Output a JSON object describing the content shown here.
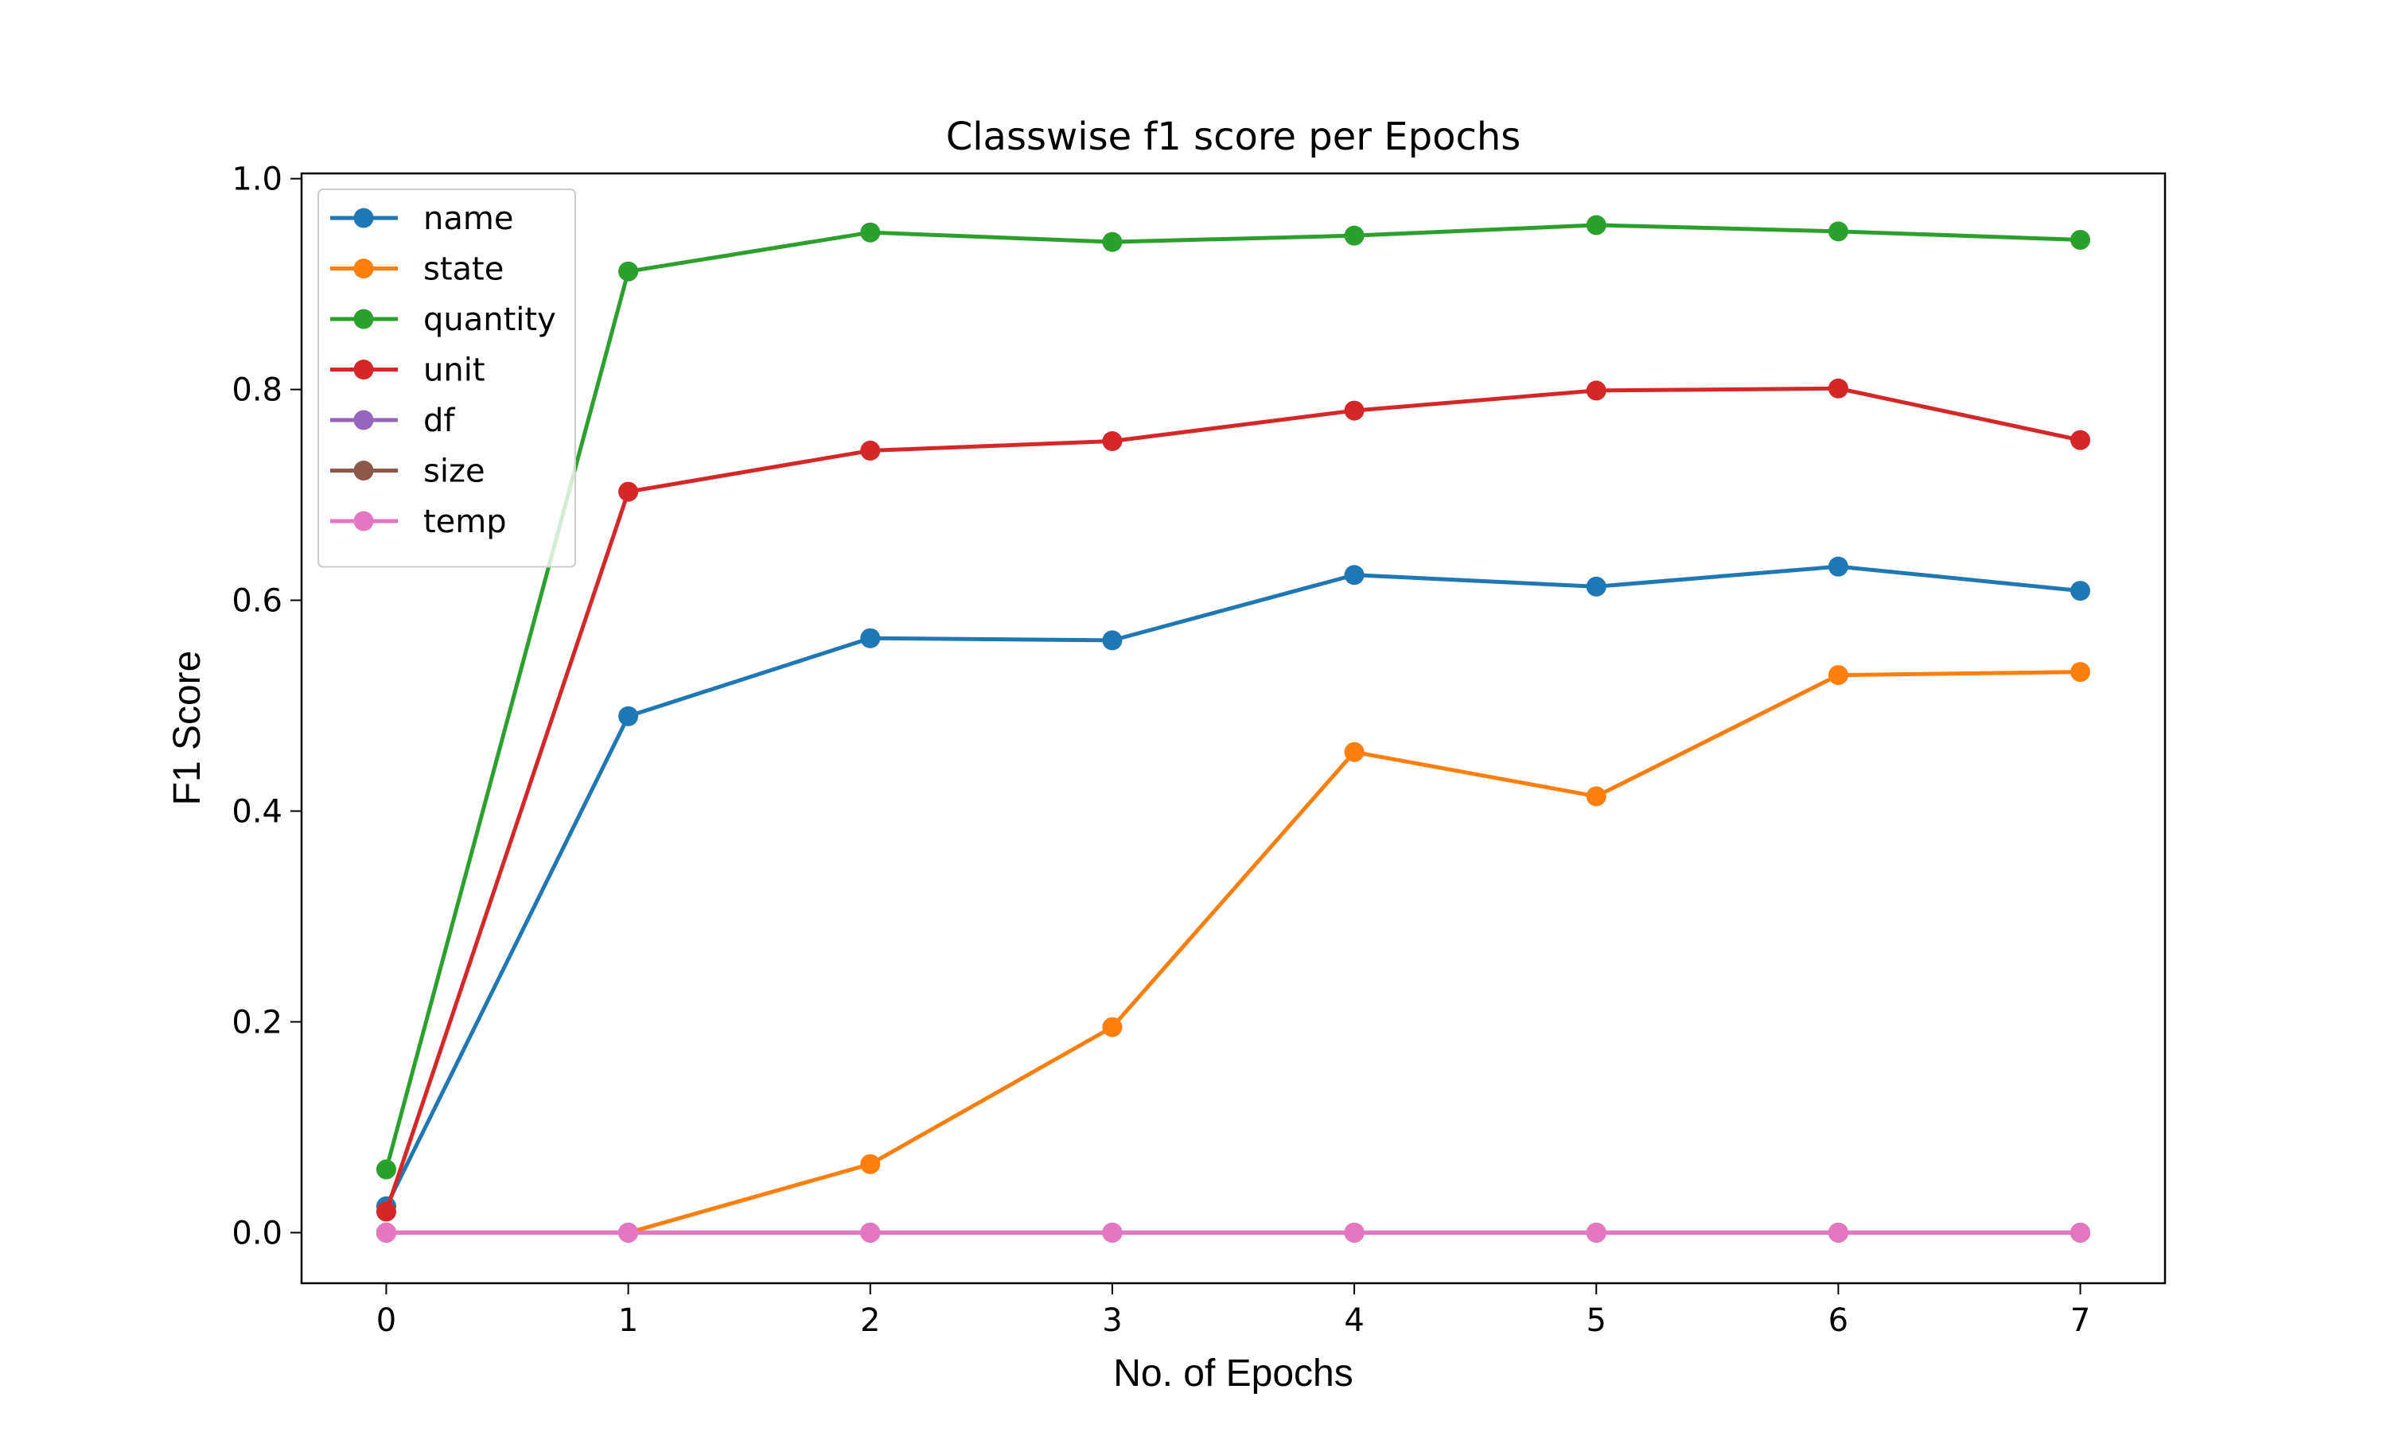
{
  "chart_data": {
    "type": "line",
    "title": "Classwise f1 score per Epochs",
    "xlabel": "No. of Epochs",
    "ylabel": "F1 Score",
    "x": [
      0,
      1,
      2,
      3,
      4,
      5,
      6,
      7
    ],
    "xlim": [
      -0.35,
      7.35
    ],
    "ylim": [
      -0.048,
      1.005
    ],
    "xticks": [
      "0",
      "1",
      "2",
      "3",
      "4",
      "5",
      "6",
      "7"
    ],
    "yticks": [
      "0.0",
      "0.2",
      "0.4",
      "0.6",
      "0.8",
      "1.0"
    ],
    "grid": false,
    "legend_position": "top-left",
    "series": [
      {
        "name": "name",
        "color": "#1f77b4",
        "values": [
          0.025,
          0.49,
          0.564,
          0.562,
          0.624,
          0.613,
          0.632,
          0.609
        ]
      },
      {
        "name": "state",
        "color": "#ff7f0e",
        "values": [
          0.0,
          0.0,
          0.065,
          0.195,
          0.456,
          0.414,
          0.529,
          0.532
        ]
      },
      {
        "name": "quantity",
        "color": "#2ca02c",
        "values": [
          0.06,
          0.912,
          0.949,
          0.94,
          0.946,
          0.956,
          0.95,
          0.942
        ]
      },
      {
        "name": "unit",
        "color": "#d62728",
        "values": [
          0.02,
          0.703,
          0.742,
          0.751,
          0.78,
          0.799,
          0.801,
          0.752
        ]
      },
      {
        "name": "df",
        "color": "#9467bd",
        "values": [
          0,
          0,
          0,
          0,
          0,
          0,
          0,
          0
        ]
      },
      {
        "name": "size",
        "color": "#8c564b",
        "values": [
          0,
          0,
          0,
          0,
          0,
          0,
          0,
          0
        ]
      },
      {
        "name": "temp",
        "color": "#e377c2",
        "values": [
          0,
          0,
          0,
          0,
          0,
          0,
          0,
          0
        ]
      }
    ]
  }
}
